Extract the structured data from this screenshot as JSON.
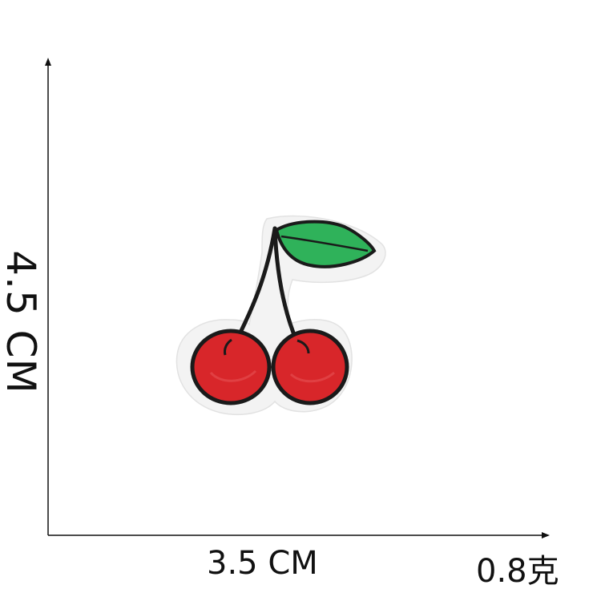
{
  "dimensions": {
    "height_label": "4.5 CM",
    "width_label": "3.5 CM",
    "weight_label": "0.8克"
  },
  "colors": {
    "axis": "#111111",
    "cherry_red": "#d8262a",
    "cherry_outline": "#1a1a1a",
    "leaf_green": "#2fb25a",
    "patch_border": "#f2f2f2"
  },
  "illustration": {
    "subject": "cherry-embroidered-patch"
  }
}
